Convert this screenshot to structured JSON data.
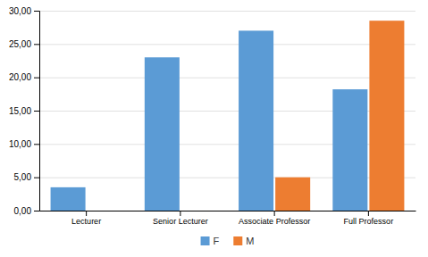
{
  "chart_data": {
    "type": "bar",
    "categories": [
      "Lecturer",
      "Senior Lecturer",
      "Associate Professor",
      "Full Professor"
    ],
    "series": [
      {
        "name": "F",
        "color": "#5B9BD5",
        "values": [
          3.5,
          23.0,
          27.0,
          18.2
        ]
      },
      {
        "name": "M",
        "color": "#ED7D31",
        "values": [
          0,
          0,
          5.0,
          28.5
        ]
      }
    ],
    "ylim": [
      0,
      30
    ],
    "yticks": [
      {
        "value": 0,
        "label": "0,00"
      },
      {
        "value": 5,
        "label": "5,00"
      },
      {
        "value": 10,
        "label": "10,00"
      },
      {
        "value": 15,
        "label": "15,00"
      },
      {
        "value": 20,
        "label": "20,00"
      },
      {
        "value": 25,
        "label": "25,00"
      },
      {
        "value": 30,
        "label": "30,00"
      }
    ],
    "grid": true,
    "legend": "bottom"
  }
}
